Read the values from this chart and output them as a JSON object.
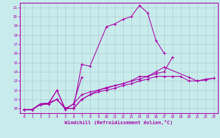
{
  "background_color": "#c8ecec",
  "grid_color": "#b0cccc",
  "line_color": "#aa00aa",
  "xlim": [
    -0.5,
    23.5
  ],
  "ylim": [
    9.5,
    21.5
  ],
  "xticks": [
    0,
    1,
    2,
    3,
    4,
    5,
    6,
    7,
    8,
    9,
    10,
    11,
    12,
    13,
    14,
    15,
    16,
    17,
    18,
    19,
    20,
    21,
    22,
    23
  ],
  "yticks": [
    10,
    11,
    12,
    13,
    14,
    15,
    16,
    17,
    18,
    19,
    20,
    21
  ],
  "xlabel": "Windchill (Refroidissement éolien,°C)",
  "lines": [
    {
      "x": [
        0,
        1,
        2,
        3,
        4,
        5,
        6,
        7,
        8,
        10,
        11,
        12,
        13,
        14,
        15,
        16,
        17
      ],
      "y": [
        9.9,
        9.9,
        10.5,
        10.5,
        12.0,
        10.0,
        10.0,
        14.8,
        14.6,
        18.9,
        19.2,
        19.7,
        20.0,
        21.2,
        20.4,
        17.4,
        16.0
      ]
    },
    {
      "x": [
        0,
        1,
        2,
        3,
        4,
        5,
        6,
        7
      ],
      "y": [
        9.9,
        9.9,
        10.5,
        10.6,
        12.0,
        9.9,
        10.5,
        13.4
      ]
    },
    {
      "x": [
        0,
        1,
        2,
        3,
        4,
        5,
        6,
        7,
        8,
        9,
        10,
        11,
        12,
        13,
        14,
        15,
        16,
        17,
        18,
        19,
        20,
        21,
        22,
        23
      ],
      "y": [
        9.9,
        9.9,
        10.5,
        10.6,
        11.0,
        10.0,
        10.0,
        11.0,
        11.5,
        11.8,
        12.0,
        12.2,
        12.5,
        12.7,
        13.0,
        13.2,
        13.5,
        13.5,
        13.5,
        13.5,
        13.0,
        13.0,
        13.2,
        13.3
      ]
    },
    {
      "x": [
        0,
        1,
        2,
        3,
        4,
        5,
        6,
        7,
        8,
        9,
        10,
        11,
        12,
        13,
        14,
        15,
        16,
        17,
        18
      ],
      "y": [
        9.9,
        9.9,
        10.5,
        10.6,
        11.0,
        10.0,
        10.5,
        11.5,
        11.8,
        12.0,
        12.2,
        12.5,
        12.7,
        13.0,
        13.2,
        13.5,
        13.8,
        14.0,
        15.6
      ]
    },
    {
      "x": [
        0,
        1,
        2,
        3,
        4,
        5,
        6,
        7,
        8,
        9,
        10,
        11,
        12,
        13,
        14,
        15,
        16,
        17,
        20,
        21,
        22,
        23
      ],
      "y": [
        9.9,
        9.9,
        10.4,
        10.5,
        11.0,
        10.0,
        10.0,
        11.0,
        11.5,
        12.0,
        12.3,
        12.5,
        12.7,
        13.0,
        13.5,
        13.5,
        14.0,
        14.5,
        13.4,
        13.0,
        13.1,
        13.3
      ]
    }
  ]
}
